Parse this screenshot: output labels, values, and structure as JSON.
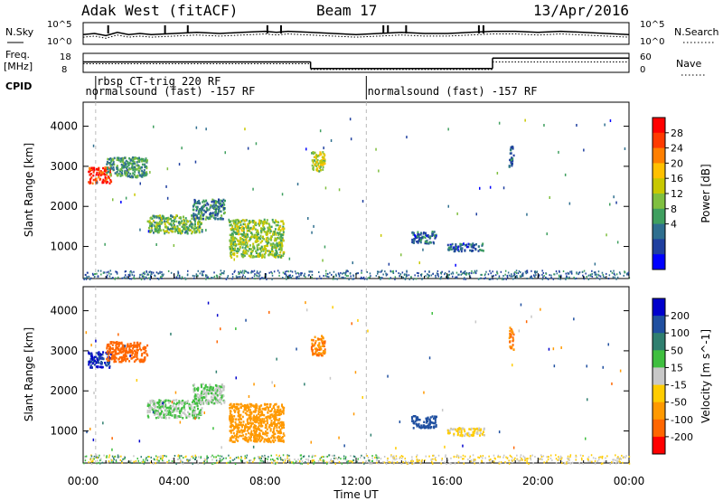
{
  "header": {
    "station": "Adak West (fitACF)",
    "beam": "Beam 17",
    "date": "13/Apr/2016"
  },
  "noise_panel": {
    "left_label": "N.Sky",
    "right_label": "N.Search",
    "ticks_left": [
      "10^5",
      "10^0"
    ],
    "ticks_right": [
      "10^5",
      "10^0"
    ],
    "sky_level": [
      [
        0,
        0.45
      ],
      [
        0.5,
        0.5
      ],
      [
        1,
        0.4
      ],
      [
        1.5,
        0.55
      ],
      [
        2,
        0.45
      ],
      [
        2.5,
        0.5
      ],
      [
        3,
        0.45
      ],
      [
        4,
        0.5
      ],
      [
        5,
        0.55
      ],
      [
        6,
        0.5
      ],
      [
        7,
        0.55
      ],
      [
        8,
        0.6
      ],
      [
        8.5,
        0.55
      ],
      [
        9,
        0.6
      ],
      [
        10,
        0.55
      ],
      [
        11,
        0.5
      ],
      [
        12,
        0.45
      ],
      [
        13,
        0.5
      ],
      [
        14,
        0.55
      ],
      [
        15,
        0.5
      ],
      [
        16,
        0.5
      ],
      [
        17,
        0.55
      ],
      [
        18,
        0.6
      ],
      [
        19,
        0.6
      ],
      [
        20,
        0.55
      ],
      [
        21,
        0.6
      ],
      [
        22,
        0.55
      ],
      [
        23,
        0.5
      ],
      [
        24,
        0.45
      ]
    ],
    "spikes": [
      1.1,
      3.6,
      4.6,
      8.1,
      8.7,
      13.2,
      13.4,
      14.2,
      17.4,
      17.6
    ]
  },
  "freq_panel": {
    "left_label_1": "Freq.",
    "left_label_2": "[MHz]",
    "right_label": "Nave",
    "ticks_left": [
      "18",
      "8"
    ],
    "ticks_right": [
      "60",
      "0"
    ],
    "freq_steps": [
      {
        "t0": 0,
        "t1": 10,
        "level": 0.55
      },
      {
        "t0": 10,
        "t1": 18,
        "level": 0.2
      },
      {
        "t0": 18,
        "t1": 24,
        "level": 0.75
      }
    ],
    "nave_steps": [
      {
        "t0": 0,
        "t1": 10,
        "level": 0.45
      },
      {
        "t0": 10,
        "t1": 18,
        "level": 0.15
      },
      {
        "t0": 18,
        "t1": 24,
        "level": 0.55
      }
    ]
  },
  "cpid": {
    "label": "CPID",
    "entries": [
      {
        "text": "rbsp CT-trig 220 RF",
        "start": 0.6,
        "row": 0
      },
      {
        "text": "normalsound (fast) -157 RF",
        "start": 0.1,
        "row": 1
      },
      {
        "text": "normalsound (fast) -157 RF",
        "start": 12.5,
        "row": 1
      }
    ],
    "boundaries": [
      0.55,
      12.45
    ]
  },
  "axes": {
    "ylabel": "Slant Range [km]",
    "yticks": [
      1000,
      2000,
      3000,
      4000
    ],
    "ylim": [
      200,
      4600
    ],
    "xlim": [
      0,
      24
    ],
    "xticks": [
      "00:00",
      "04:00",
      "08:00",
      "12:00",
      "16:00",
      "20:00",
      "00:00"
    ],
    "xlabel": "Time UT"
  },
  "power_colorbar": {
    "label": "Power [dB]",
    "ticks": [
      "28",
      "24",
      "20",
      "16",
      "12",
      "8",
      "4"
    ],
    "colors": [
      "#ff0000",
      "#ff3a00",
      "#ff7f00",
      "#ffc000",
      "#c8c800",
      "#7fbf3f",
      "#3f9f5f",
      "#2f6f8f",
      "#1f3f9f",
      "#0000ff"
    ]
  },
  "velocity_colorbar": {
    "label": "Velocity [m s^-1]",
    "ticks": [
      "200",
      "100",
      "50",
      "15",
      "-15",
      "-50",
      "-100",
      "-200"
    ],
    "colors": [
      "#0000cc",
      "#1f4fa0",
      "#2f7f6f",
      "#3fbf3f",
      "#c8c8c8",
      "#ffcc00",
      "#ff9900",
      "#ff6600",
      "#ff0000"
    ]
  },
  "chart_data": {
    "type": "heatmap",
    "title": "Adak West (fitACF) Beam 17 13/Apr/2016",
    "xlabel": "Time UT",
    "ylabel": "Slant Range [km]",
    "xlim": [
      0,
      24
    ],
    "ylim": [
      200,
      4600
    ],
    "echo_regions": [
      {
        "t0": 0.2,
        "t1": 1.2,
        "r0": 2600,
        "r1": 3000,
        "power": 28,
        "velocity": 150
      },
      {
        "t0": 1.0,
        "t1": 2.8,
        "r0": 2750,
        "r1": 3250,
        "power": 10,
        "velocity": -200
      },
      {
        "t0": 2.8,
        "t1": 5.2,
        "r0": 1350,
        "r1": 1800,
        "power": 12,
        "velocity": 0
      },
      {
        "t0": 4.8,
        "t1": 6.2,
        "r0": 1700,
        "r1": 2200,
        "power": 8,
        "velocity": 0
      },
      {
        "t0": 6.4,
        "t1": 8.8,
        "r0": 750,
        "r1": 1700,
        "power": 14,
        "velocity": -120
      },
      {
        "t0": 10.0,
        "t1": 10.6,
        "r0": 2900,
        "r1": 3400,
        "power": 16,
        "velocity": -150
      },
      {
        "t0": 14.4,
        "t1": 15.5,
        "r0": 1100,
        "r1": 1400,
        "power": 6,
        "velocity": 120
      },
      {
        "t0": 16.0,
        "t1": 17.6,
        "r0": 900,
        "r1": 1100,
        "power": 6,
        "velocity": -40
      },
      {
        "t0": 18.7,
        "t1": 18.9,
        "r0": 3000,
        "r1": 3600,
        "power": 6,
        "velocity": -150
      }
    ],
    "ground_scatter_band": {
      "r0": 200,
      "r1": 420
    }
  }
}
